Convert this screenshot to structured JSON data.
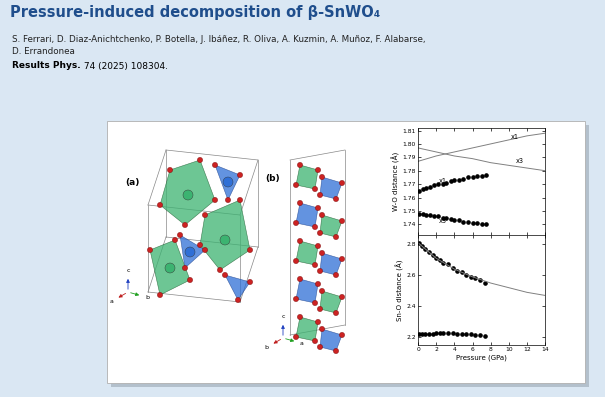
{
  "header": {
    "title": "Pressure-induced decomposition of β-SnWO₄",
    "authors": [
      "S. Ferrari, D. Diaz-Anichtchenko, P. Botella, J. Ibáñez, R. Oliva, A. Kuzmin, A. Muñoz, F. Alabarse,",
      "D. Errandonea"
    ],
    "journal": "Results Phys.",
    "citation": "74 (2025) 108304."
  },
  "structures": [
    {
      "label": "(a)",
      "axes": [
        "c",
        "a",
        "b"
      ]
    },
    {
      "label": "(b)",
      "axes": [
        "c",
        "b",
        "a"
      ]
    }
  ],
  "chart_data": [
    {
      "type": "scatter",
      "ylabel": "W-O distance (Å)",
      "tick_labels": "y",
      "xlim": [
        0,
        14
      ],
      "xticks": [
        0,
        2,
        4,
        6,
        8,
        10,
        12,
        14
      ],
      "ylim": [
        1.732,
        1.812
      ],
      "yticks": [
        1.74,
        1.75,
        1.76,
        1.77,
        1.78,
        1.79,
        {
          "value": 1.8,
          "label": "1.80"
        },
        1.81
      ],
      "series": [
        {
          "type": "scatter",
          "color": "#000000",
          "marker": "o",
          "x": [
            0.1,
            0.5,
            0.9,
            1.3,
            1.8,
            2.2,
            2.7,
            3.1,
            3.6,
            4.0,
            4.5,
            5.0,
            5.5,
            6.0,
            6.5,
            7.0,
            7.5
          ],
          "values": [
            1.765,
            1.766,
            1.767,
            1.768,
            1.769,
            1.77,
            1.77,
            1.771,
            1.772,
            1.773,
            1.773,
            1.774,
            1.775,
            1.775,
            1.776,
            1.776,
            1.777
          ]
        },
        {
          "type": "scatter",
          "color": "#000000",
          "marker": "o",
          "x": [
            0.1,
            0.5,
            0.9,
            1.3,
            1.8,
            2.2,
            2.7,
            3.1,
            3.6,
            4.0,
            4.5,
            5.0,
            5.5,
            6.0,
            6.5,
            7.0,
            7.5
          ],
          "values": [
            1.748,
            1.748,
            1.747,
            1.747,
            1.746,
            1.746,
            1.745,
            1.745,
            1.744,
            1.743,
            1.743,
            1.742,
            1.742,
            1.741,
            1.741,
            1.74,
            1.74
          ]
        },
        {
          "type": "line",
          "color": "#808080",
          "line_style": "solid",
          "x": [
            0,
            2,
            4,
            6,
            8,
            10,
            12,
            14
          ],
          "values": [
            1.787,
            1.791,
            1.794,
            1.797,
            1.8,
            1.803,
            1.806,
            1.808
          ]
        },
        {
          "type": "line",
          "color": "#808080",
          "line_style": "solid",
          "x": [
            0,
            2,
            4,
            6,
            8,
            10,
            12,
            14
          ],
          "values": [
            1.797,
            1.794,
            1.791,
            1.789,
            1.786,
            1.784,
            1.782,
            1.78
          ]
        }
      ],
      "annotations": [
        {
          "text": "x1",
          "x": 10.2,
          "y": 1.805
        },
        {
          "text": "x3",
          "x": 10.8,
          "y": 1.7875
        },
        {
          "text": "x1",
          "x": 2.3,
          "y": 1.7725
        },
        {
          "text": "x3",
          "x": 2.3,
          "y": 1.7425
        }
      ]
    },
    {
      "type": "scatter",
      "ylabel": "Sn-O distance (Å)",
      "xlabel": "Pressure (GPa)",
      "xlim": [
        0,
        14
      ],
      "xticks": [
        0,
        2,
        4,
        6,
        8,
        10,
        12,
        14
      ],
      "ylim": [
        2.15,
        2.86
      ],
      "yticks": [
        2.2,
        2.4,
        2.6,
        2.8
      ],
      "series": [
        {
          "type": "scatter",
          "color": "#000000",
          "marker": "o",
          "x": [
            0.1,
            0.4,
            0.8,
            1.2,
            1.6,
            2.0,
            2.4,
            2.8,
            3.3,
            3.8,
            4.3,
            4.8,
            5.3,
            5.8,
            6.3,
            6.8,
            7.4
          ],
          "values": [
            2.81,
            2.79,
            2.77,
            2.75,
            2.73,
            2.71,
            2.7,
            2.68,
            2.67,
            2.65,
            2.63,
            2.62,
            2.6,
            2.59,
            2.58,
            2.57,
            2.55
          ]
        },
        {
          "type": "scatter",
          "color": "#000000",
          "marker": "o",
          "x": [
            0.1,
            0.4,
            0.8,
            1.2,
            1.6,
            2.0,
            2.4,
            2.8,
            3.3,
            3.8,
            4.3,
            4.8,
            5.3,
            5.8,
            6.3,
            6.8,
            7.4
          ],
          "values": [
            2.22,
            2.22,
            2.22,
            2.22,
            2.22,
            2.225,
            2.225,
            2.225,
            2.225,
            2.225,
            2.22,
            2.22,
            2.22,
            2.22,
            2.215,
            2.215,
            2.21
          ]
        },
        {
          "type": "line",
          "color": "#808080",
          "line_style": "solid",
          "x": [
            0,
            2,
            4,
            6,
            8,
            10,
            12,
            14
          ],
          "values": [
            2.81,
            2.71,
            2.64,
            2.59,
            2.55,
            2.52,
            2.49,
            2.47
          ]
        }
      ]
    }
  ]
}
